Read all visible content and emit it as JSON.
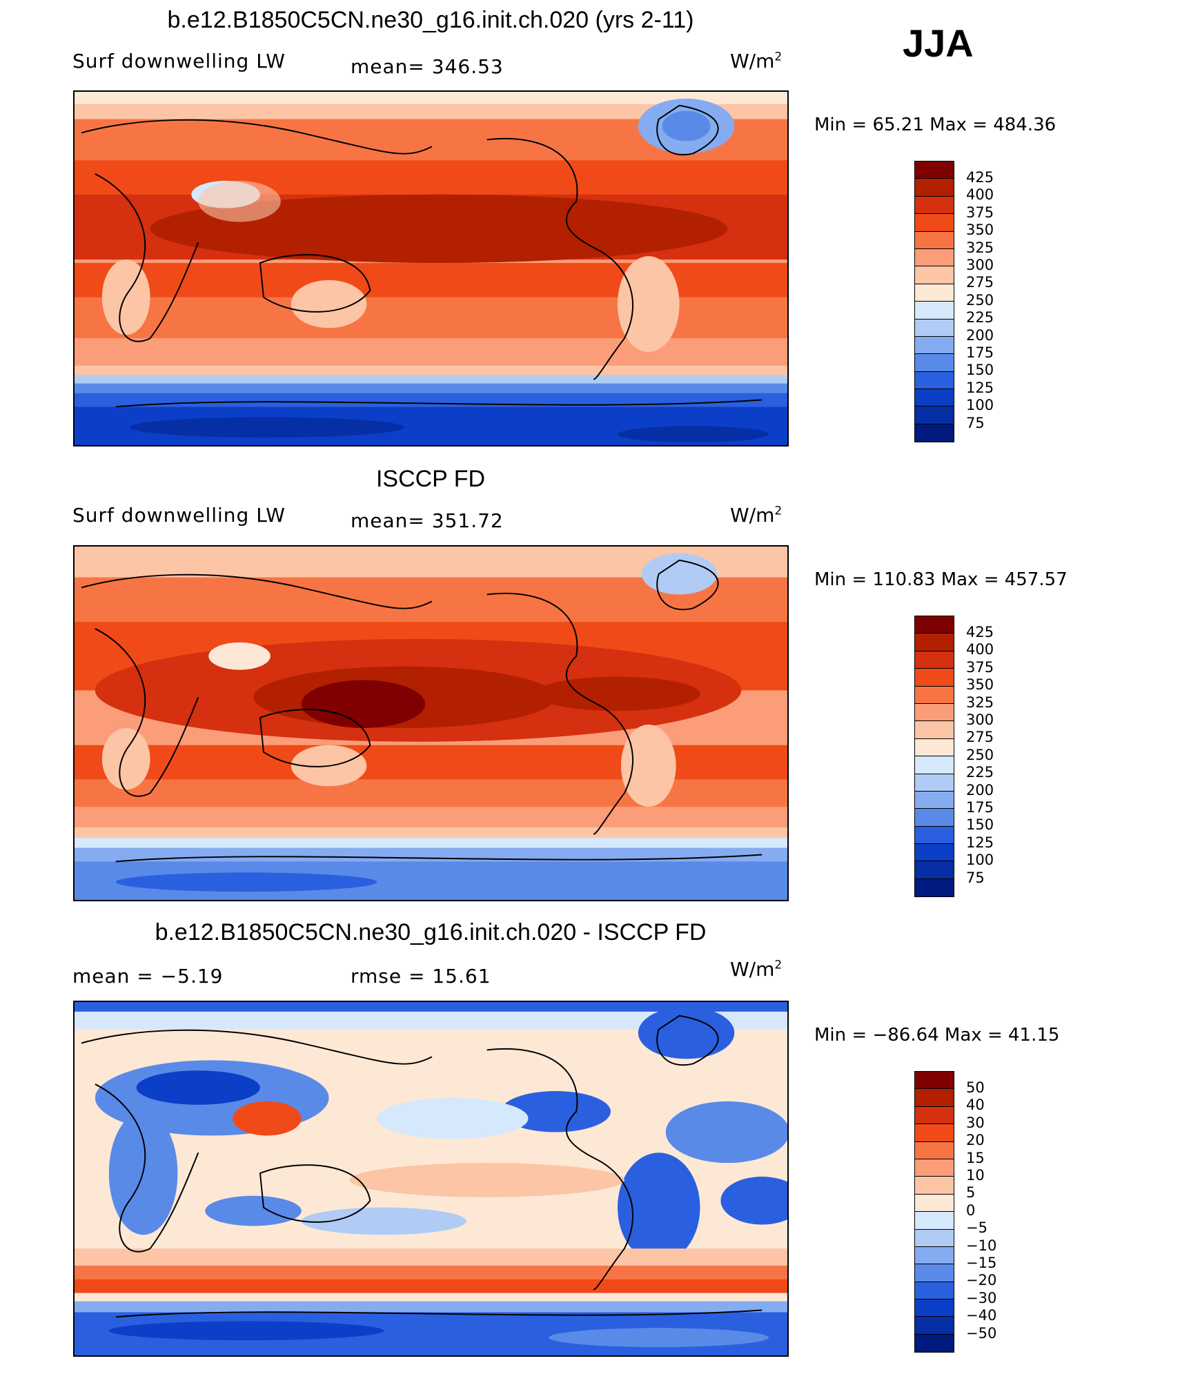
{
  "season": "JJA",
  "units": "W/m",
  "units_sup": "2",
  "panels": [
    {
      "title": "b.e12.B1850C5CN.ne30_g16.init.ch.020 (yrs 2-11)",
      "left_label": "Surf downwelling LW",
      "center_label": "mean= 346.53",
      "min_max": "Min =  65.21 Max = 484.36",
      "levels": [
        "425",
        "400",
        "375",
        "350",
        "325",
        "300",
        "275",
        "250",
        "225",
        "200",
        "175",
        "150",
        "125",
        "100",
        "75"
      ],
      "colors": [
        "#7f0000",
        "#b22000",
        "#d53010",
        "#f04a18",
        "#f77545",
        "#fa9d78",
        "#fcc5a6",
        "#fde8d6",
        "#d6e8fb",
        "#b0ccf5",
        "#85acf0",
        "#5a8ae8",
        "#2a60df",
        "#0c3fc8",
        "#062fa6",
        "#001a80"
      ]
    },
    {
      "title": "ISCCP FD",
      "left_label": "Surf downwelling LW",
      "center_label": "mean= 351.72",
      "min_max": "Min = 110.83 Max = 457.57",
      "levels": [
        "425",
        "400",
        "375",
        "350",
        "325",
        "300",
        "275",
        "250",
        "225",
        "200",
        "175",
        "150",
        "125",
        "100",
        "75"
      ],
      "colors": [
        "#7f0000",
        "#b22000",
        "#d53010",
        "#f04a18",
        "#f77545",
        "#fa9d78",
        "#fcc5a6",
        "#fde8d6",
        "#d6e8fb",
        "#b0ccf5",
        "#85acf0",
        "#5a8ae8",
        "#2a60df",
        "#0c3fc8",
        "#062fa6",
        "#001a80"
      ]
    },
    {
      "title": "b.e12.B1850C5CN.ne30_g16.init.ch.020 - ISCCP FD",
      "left_label": "mean =   −5.19",
      "center_label": "rmse =   15.61",
      "min_max": "Min = −86.64 Max =   41.15",
      "levels": [
        "50",
        "40",
        "30",
        "20",
        "15",
        "10",
        "5",
        "0",
        "−5",
        "−10",
        "−15",
        "−20",
        "−30",
        "−40",
        "−50"
      ],
      "colors": [
        "#7f0000",
        "#b22000",
        "#d53010",
        "#f04a18",
        "#f77545",
        "#fa9d78",
        "#fcc5a6",
        "#fde8d6",
        "#d6e8fb",
        "#b0ccf5",
        "#85acf0",
        "#5a8ae8",
        "#2a60df",
        "#0c3fc8",
        "#062fa6",
        "#001a80"
      ]
    }
  ]
}
